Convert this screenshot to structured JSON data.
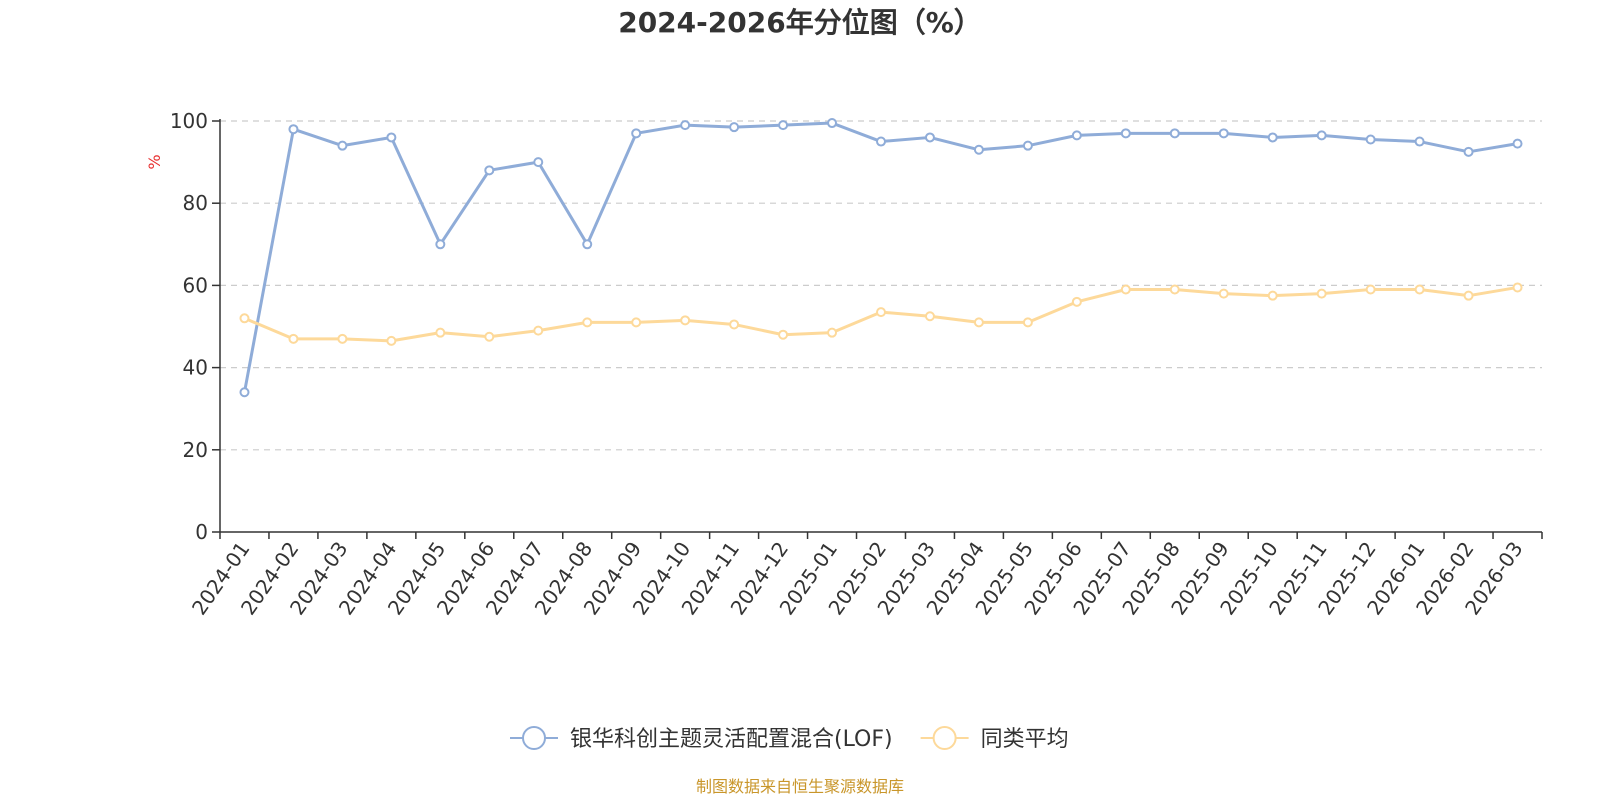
{
  "colors": {
    "fund": "#8facd8",
    "peer": "#fdd99a",
    "ylabel": "#e83030",
    "source": "#c9962a",
    "grid": "#cccccc",
    "axis": "#333333"
  },
  "chart_data": {
    "type": "line",
    "title": "2024-2026年分位图（%）",
    "ylabel": "%",
    "ylim": [
      0,
      100
    ],
    "yticks": [
      0,
      20,
      40,
      60,
      80,
      100
    ],
    "grid": "horizontal dashed",
    "legend_position": "bottom-center",
    "categories": [
      "2024-01",
      "2024-02",
      "2024-03",
      "2024-04",
      "2024-05",
      "2024-06",
      "2024-07",
      "2024-08",
      "2024-09",
      "2024-10",
      "2024-11",
      "2024-12",
      "2025-01",
      "2025-02",
      "2025-03",
      "2025-04",
      "2025-05",
      "2025-06",
      "2025-07",
      "2025-08",
      "2025-09",
      "2025-10",
      "2025-11",
      "2025-12",
      "2026-01",
      "2026-02",
      "2026-03"
    ],
    "series": [
      {
        "name": "银华科创主题灵活配置混合(LOF)",
        "color_key": "fund",
        "values": [
          34,
          98,
          94,
          96,
          70,
          88,
          90,
          70,
          97,
          99,
          98.5,
          99,
          99.5,
          95,
          96,
          93,
          94,
          96.5,
          97,
          97,
          97,
          96,
          96.5,
          95.5,
          95,
          92.5,
          94.5
        ]
      },
      {
        "name": "同类平均",
        "color_key": "peer",
        "values": [
          52,
          47,
          47,
          46.5,
          48.5,
          47.5,
          49,
          51,
          51,
          51.5,
          50.5,
          48,
          48.5,
          53.5,
          52.5,
          51,
          51,
          56,
          59,
          59,
          58,
          57.5,
          58,
          59,
          59,
          57.5,
          59.5
        ]
      }
    ]
  },
  "footer": {
    "source": "制图数据来自恒生聚源数据库"
  }
}
